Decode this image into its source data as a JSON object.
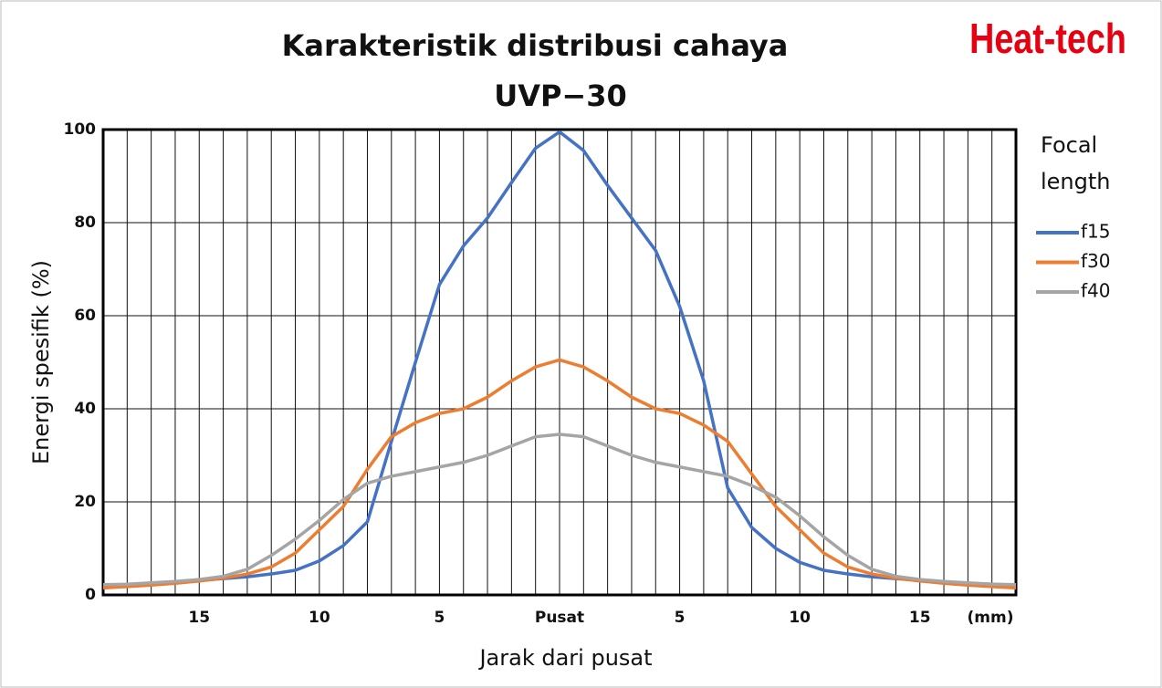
{
  "chart_data": {
    "type": "line",
    "title": "Karakteristik distribusi cahaya",
    "subtitle": "UVP−30",
    "brand": "Heat-tech",
    "x_label": "Jarak dari pusat",
    "x_unit": "(mm)",
    "y_label": "Energi spesifik (%)",
    "legend_title": [
      "Focal",
      "length"
    ],
    "legend": "right",
    "grid": true,
    "xlim": [
      -19,
      19
    ],
    "ylim": [
      0,
      100
    ],
    "yticks": [
      0,
      20,
      40,
      60,
      80,
      100
    ],
    "xticks": [
      {
        "value": -15,
        "label": "15"
      },
      {
        "value": -10,
        "label": "10"
      },
      {
        "value": -5,
        "label": "5"
      },
      {
        "value": 0,
        "label": "Pusat"
      },
      {
        "value": 5,
        "label": "5"
      },
      {
        "value": 10,
        "label": "10"
      },
      {
        "value": 15,
        "label": "15"
      }
    ],
    "x": [
      -19,
      -18,
      -17,
      -16,
      -15,
      -14,
      -13,
      -12,
      -11,
      -10,
      -9,
      -8,
      -7,
      -6,
      -5,
      -4,
      -3,
      -2,
      -1,
      0,
      1,
      2,
      3,
      4,
      5,
      6,
      7,
      8,
      9,
      10,
      11,
      12,
      13,
      14,
      15,
      16,
      17,
      18,
      19
    ],
    "series": [
      {
        "name": "f15",
        "color": "#4472c4",
        "values": [
          2.0,
          2.2,
          2.5,
          2.8,
          3.1,
          3.5,
          3.9,
          4.5,
          5.3,
          7.3,
          10.6,
          15.7,
          33,
          50,
          66.7,
          75,
          81,
          88.6,
          96,
          99.5,
          95.5,
          88,
          81,
          74,
          62,
          46,
          23,
          14.5,
          10,
          7,
          5.3,
          4.5,
          3.9,
          3.5,
          3.1,
          2.8,
          2.5,
          2.3,
          2.1
        ]
      },
      {
        "name": "f30",
        "color": "#ed7d31",
        "values": [
          1.5,
          1.8,
          2.1,
          2.5,
          3,
          3.6,
          4.5,
          6,
          9,
          14,
          19,
          27,
          34,
          37,
          39,
          40,
          42.5,
          46,
          49,
          50.5,
          49,
          46,
          42.5,
          40,
          39,
          36.5,
          33,
          26,
          19,
          14,
          9,
          6,
          4.5,
          3.6,
          3,
          2.5,
          2.1,
          1.8,
          1.5
        ]
      },
      {
        "name": "f40",
        "color": "#a5a5a5",
        "values": [
          2.2,
          2.3,
          2.6,
          2.9,
          3.3,
          4,
          5.5,
          8.5,
          12,
          16,
          20.5,
          24,
          25.5,
          26.5,
          27.5,
          28.5,
          30,
          32,
          34,
          34.5,
          34,
          32,
          30,
          28.5,
          27.5,
          26.5,
          25.5,
          23.5,
          21,
          17,
          12.5,
          8.5,
          5.5,
          4,
          3.3,
          2.9,
          2.6,
          2.3,
          2.2
        ]
      }
    ]
  }
}
